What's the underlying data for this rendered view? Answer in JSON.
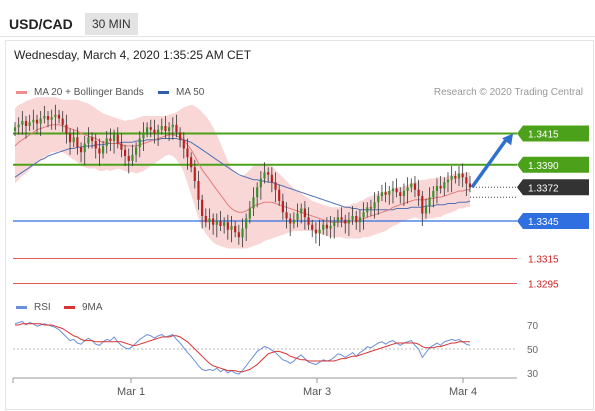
{
  "header": {
    "symbol": "USD/CAD",
    "timeframe": "30 MIN"
  },
  "datetime": "Wednesday, March 4, 2020 1:35:25 AM CET",
  "credit": "Research © 2020 Trading Central",
  "legend": [
    {
      "label": "MA 20 + Bollinger Bands",
      "color": "#f28b8b"
    },
    {
      "label": "MA 50",
      "color": "#2f5ea8"
    }
  ],
  "rsi_legend": [
    {
      "label": "RSI",
      "color": "#6b8fd8"
    },
    {
      "label": "9MA",
      "color": "#d93333"
    }
  ],
  "chart_data": [
    {
      "type": "candlestick",
      "title": "USD/CAD 30 MIN",
      "x_ticks": [
        "Mar 1",
        "Mar 3",
        "Mar 4"
      ],
      "ylim": [
        1.3285,
        1.3445
      ],
      "current_price": 1.3372,
      "levels": [
        {
          "value": 1.3415,
          "label": "1.3415",
          "kind": "resistance",
          "color": "#4ca11a"
        },
        {
          "value": 1.339,
          "label": "1.3390",
          "kind": "resistance",
          "color": "#4ca11a"
        },
        {
          "value": 1.3345,
          "label": "1.3345",
          "kind": "pivot",
          "color": "#2f6fe0"
        },
        {
          "value": 1.3315,
          "label": "1.3315",
          "kind": "support",
          "color": "#e05858"
        },
        {
          "value": 1.3295,
          "label": "1.3295",
          "kind": "support",
          "color": "#e05858"
        }
      ],
      "closes": [
        1.342,
        1.3422,
        1.3425,
        1.3421,
        1.3424,
        1.3426,
        1.3423,
        1.3427,
        1.3429,
        1.3426,
        1.3428,
        1.343,
        1.3427,
        1.3422,
        1.3415,
        1.3408,
        1.3412,
        1.3404,
        1.34,
        1.3407,
        1.3412,
        1.3409,
        1.3403,
        1.3399,
        1.3405,
        1.3411,
        1.3409,
        1.3414,
        1.3407,
        1.3402,
        1.3397,
        1.3393,
        1.3398,
        1.3404,
        1.3411,
        1.3416,
        1.342,
        1.3418,
        1.3415,
        1.3418,
        1.3421,
        1.3417,
        1.342,
        1.3422,
        1.3416,
        1.341,
        1.3403,
        1.3396,
        1.3388,
        1.3377,
        1.3362,
        1.3349,
        1.3344,
        1.3347,
        1.3342,
        1.3345,
        1.3341,
        1.3344,
        1.3338,
        1.3341,
        1.3336,
        1.3332,
        1.3339,
        1.3347,
        1.3355,
        1.3364,
        1.3372,
        1.3379,
        1.3384,
        1.3382,
        1.3376,
        1.337,
        1.3361,
        1.3352,
        1.3347,
        1.3343,
        1.3346,
        1.3351,
        1.3355,
        1.3348,
        1.3342,
        1.3338,
        1.3335,
        1.3338,
        1.3342,
        1.3339,
        1.3341,
        1.3344,
        1.3348,
        1.3346,
        1.3343,
        1.3346,
        1.3349,
        1.3344,
        1.3348,
        1.3352,
        1.3356,
        1.3355,
        1.336,
        1.3365,
        1.3368,
        1.3366,
        1.3369,
        1.3371,
        1.3368,
        1.3365,
        1.3369,
        1.3372,
        1.3375,
        1.337,
        1.3365,
        1.3351,
        1.3357,
        1.3364,
        1.3369,
        1.3373,
        1.3371,
        1.3376,
        1.3378,
        1.3381,
        1.3379,
        1.3383,
        1.338,
        1.3375,
        1.3372
      ],
      "ma20": [
        1.3405,
        1.3408,
        1.341,
        1.3412,
        1.3414,
        1.3416,
        1.3418,
        1.3419,
        1.342,
        1.3421,
        1.3422,
        1.3422,
        1.3422,
        1.3421,
        1.342,
        1.3419,
        1.3418,
        1.3417,
        1.3415,
        1.3414,
        1.3413,
        1.3412,
        1.3411,
        1.3409,
        1.3408,
        1.3408,
        1.3407,
        1.3407,
        1.3407,
        1.3406,
        1.3405,
        1.3405,
        1.3405,
        1.3405,
        1.3406,
        1.3407,
        1.3408,
        1.3409,
        1.341,
        1.3411,
        1.3412,
        1.3413,
        1.3414,
        1.3414,
        1.3413,
        1.3412,
        1.341,
        1.3406,
        1.3402,
        1.3397,
        1.3391,
        1.3386,
        1.3382,
        1.3378,
        1.3374,
        1.337,
        1.3366,
        1.3362,
        1.3358,
        1.3355,
        1.3353,
        1.3352,
        1.3352,
        1.3353,
        1.3355,
        1.3357,
        1.3358,
        1.3359,
        1.336,
        1.336,
        1.336,
        1.3359,
        1.3358,
        1.3357,
        1.3356,
        1.3355,
        1.3354,
        1.3353,
        1.3352,
        1.3351,
        1.335,
        1.3349,
        1.3348,
        1.3347,
        1.3346,
        1.3345,
        1.3344,
        1.3344,
        1.3344,
        1.3344,
        1.3344,
        1.3344,
        1.3345,
        1.3345,
        1.3346,
        1.3347,
        1.3348,
        1.3349,
        1.335,
        1.3351,
        1.3352,
        1.3353,
        1.3354,
        1.3356,
        1.3357,
        1.3358,
        1.3359,
        1.336,
        1.3361,
        1.3362,
        1.3362,
        1.3362,
        1.3362,
        1.3363,
        1.3363,
        1.3364,
        1.3364,
        1.3365,
        1.3366,
        1.3367,
        1.3368,
        1.3369,
        1.3369,
        1.337,
        1.337
      ],
      "ma50": [
        1.338,
        1.3382,
        1.3384,
        1.3386,
        1.3388,
        1.339,
        1.3392,
        1.3394,
        1.3395,
        1.3397,
        1.3398,
        1.3399,
        1.34,
        1.3401,
        1.3402,
        1.3403,
        1.3403,
        1.3404,
        1.3404,
        1.3405,
        1.3405,
        1.3405,
        1.3406,
        1.3406,
        1.3406,
        1.3407,
        1.3407,
        1.3407,
        1.3407,
        1.3408,
        1.3408,
        1.3408,
        1.3408,
        1.3409,
        1.3409,
        1.3409,
        1.341,
        1.341,
        1.341,
        1.341,
        1.3411,
        1.3411,
        1.3411,
        1.3411,
        1.3411,
        1.341,
        1.341,
        1.3409,
        1.3408,
        1.3406,
        1.3404,
        1.3402,
        1.34,
        1.3398,
        1.3396,
        1.3394,
        1.3392,
        1.339,
        1.3388,
        1.3386,
        1.3384,
        1.3382,
        1.3381,
        1.338,
        1.3379,
        1.3378,
        1.3378,
        1.3377,
        1.3377,
        1.3376,
        1.3376,
        1.3375,
        1.3374,
        1.3373,
        1.3372,
        1.3371,
        1.337,
        1.3369,
        1.3368,
        1.3367,
        1.3366,
        1.3365,
        1.3364,
        1.3363,
        1.3362,
        1.3361,
        1.336,
        1.3359,
        1.3358,
        1.3357,
        1.3356,
        1.3356,
        1.3355,
        1.3355,
        1.3354,
        1.3354,
        1.3354,
        1.3354,
        1.3354,
        1.3354,
        1.3354,
        1.3354,
        1.3354,
        1.3354,
        1.3355,
        1.3355,
        1.3355,
        1.3355,
        1.3356,
        1.3356,
        1.3356,
        1.3356,
        1.3357,
        1.3357,
        1.3357,
        1.3358,
        1.3358,
        1.3358,
        1.3359,
        1.3359,
        1.3359,
        1.336,
        1.336,
        1.336,
        1.3361
      ],
      "bb_width": [
        0.003,
        0.003,
        0.0029,
        0.0029,
        0.0028,
        0.0027,
        0.0026,
        0.0025,
        0.0024,
        0.0023,
        0.0022,
        0.0022,
        0.0021,
        0.0021,
        0.0022,
        0.0023,
        0.0024,
        0.0025,
        0.0026,
        0.0026,
        0.0026,
        0.0025,
        0.0024,
        0.0024,
        0.0023,
        0.0022,
        0.0022,
        0.0021,
        0.002,
        0.002,
        0.002,
        0.0021,
        0.0021,
        0.0022,
        0.0022,
        0.0022,
        0.0021,
        0.002,
        0.0019,
        0.0018,
        0.0017,
        0.0016,
        0.0016,
        0.0017,
        0.0019,
        0.0022,
        0.0026,
        0.0031,
        0.0036,
        0.004,
        0.0044,
        0.0046,
        0.0047,
        0.0047,
        0.0046,
        0.0044,
        0.0041,
        0.0038,
        0.0035,
        0.0032,
        0.003,
        0.0029,
        0.0029,
        0.003,
        0.0031,
        0.0032,
        0.0032,
        0.0032,
        0.0031,
        0.003,
        0.0029,
        0.0027,
        0.0025,
        0.0023,
        0.0021,
        0.0019,
        0.0017,
        0.0016,
        0.0015,
        0.0014,
        0.0013,
        0.0012,
        0.0012,
        0.0012,
        0.0012,
        0.0012,
        0.0012,
        0.0012,
        0.0012,
        0.0012,
        0.0013,
        0.0013,
        0.0014,
        0.0014,
        0.0015,
        0.0015,
        0.0016,
        0.0016,
        0.0016,
        0.0016,
        0.0016,
        0.0016,
        0.0015,
        0.0015,
        0.0015,
        0.0014,
        0.0014,
        0.0014,
        0.0014,
        0.0014,
        0.0015,
        0.0016,
        0.0016,
        0.0016,
        0.0016,
        0.0016,
        0.0016,
        0.0015,
        0.0015,
        0.0015,
        0.0015,
        0.0014,
        0.0014,
        0.0014,
        0.0014
      ],
      "projection": {
        "from": 1.3372,
        "to": 1.3415
      }
    },
    {
      "type": "line",
      "title": "RSI",
      "ylim": [
        20,
        80
      ],
      "yticks": [
        30,
        50,
        70
      ],
      "series": [
        {
          "name": "RSI",
          "color": "#6b8fd8",
          "values": [
            71,
            72,
            73,
            70,
            72,
            71,
            69,
            70,
            71,
            70,
            69,
            68,
            66,
            63,
            60,
            57,
            58,
            55,
            54,
            57,
            59,
            57,
            54,
            53,
            56,
            58,
            57,
            60,
            56,
            53,
            51,
            50,
            52,
            55,
            58,
            60,
            62,
            61,
            59,
            61,
            62,
            60,
            61,
            62,
            58,
            55,
            51,
            47,
            44,
            40,
            36,
            33,
            32,
            33,
            32,
            34,
            31,
            33,
            30,
            32,
            30,
            29,
            32,
            36,
            40,
            44,
            48,
            50,
            52,
            51,
            49,
            47,
            44,
            41,
            40,
            38,
            40,
            43,
            45,
            42,
            39,
            38,
            37,
            39,
            41,
            40,
            41,
            43,
            46,
            45,
            43,
            45,
            47,
            44,
            47,
            49,
            52,
            51,
            53,
            55,
            56,
            54,
            56,
            57,
            55,
            53,
            55,
            56,
            57,
            53,
            50,
            43,
            47,
            51,
            53,
            55,
            53,
            56,
            57,
            58,
            57,
            58,
            56,
            54,
            53
          ]
        },
        {
          "name": "9MA",
          "color": "#d93333",
          "values": [
            70,
            70,
            71,
            71,
            71,
            71,
            71,
            71,
            70,
            70,
            70,
            69,
            68,
            67,
            65,
            63,
            61,
            60,
            58,
            57,
            57,
            57,
            56,
            56,
            56,
            56,
            56,
            56,
            56,
            56,
            55,
            54,
            53,
            53,
            54,
            55,
            56,
            57,
            58,
            59,
            60,
            60,
            60,
            61,
            61,
            60,
            58,
            56,
            53,
            50,
            47,
            44,
            41,
            38,
            36,
            35,
            34,
            33,
            32,
            32,
            32,
            31,
            31,
            32,
            33,
            35,
            37,
            40,
            43,
            46,
            47,
            48,
            48,
            47,
            46,
            44,
            43,
            42,
            41,
            41,
            40,
            40,
            40,
            40,
            40,
            40,
            40,
            40,
            41,
            42,
            42,
            43,
            44,
            44,
            45,
            46,
            47,
            48,
            49,
            50,
            51,
            52,
            53,
            54,
            55,
            55,
            55,
            55,
            55,
            55,
            54,
            52,
            51,
            51,
            51,
            52,
            52,
            53,
            54,
            55,
            55,
            56,
            56,
            56,
            56
          ]
        }
      ],
      "x_ticks": [
        "Mar 1",
        "Mar 3",
        "Mar 4"
      ]
    }
  ]
}
